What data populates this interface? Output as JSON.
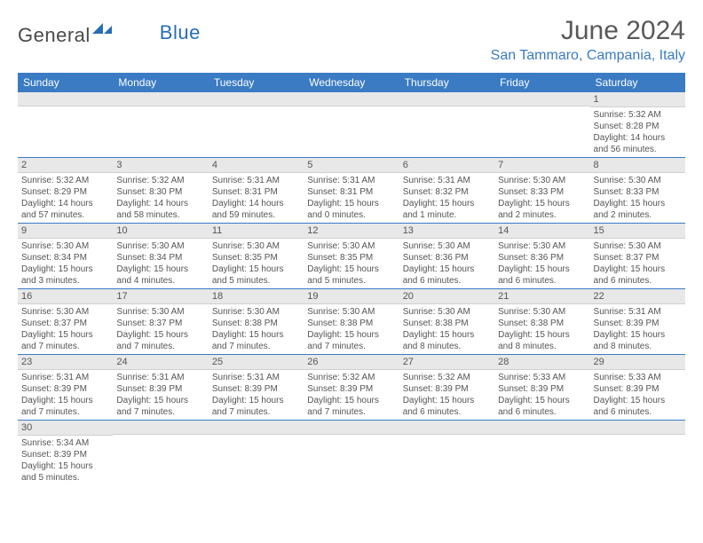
{
  "brand": {
    "part1": "General",
    "part2": "Blue"
  },
  "title": "June 2024",
  "location": "San Tammaro, Campania, Italy",
  "colors": {
    "header_bg": "#3a7bc4",
    "daynum_bg": "#e8e8e8",
    "row_border": "#3a7bc4"
  },
  "weekdays": [
    "Sunday",
    "Monday",
    "Tuesday",
    "Wednesday",
    "Thursday",
    "Friday",
    "Saturday"
  ],
  "weeks": [
    [
      {
        "n": "",
        "s": "",
        "t": "",
        "d": ""
      },
      {
        "n": "",
        "s": "",
        "t": "",
        "d": ""
      },
      {
        "n": "",
        "s": "",
        "t": "",
        "d": ""
      },
      {
        "n": "",
        "s": "",
        "t": "",
        "d": ""
      },
      {
        "n": "",
        "s": "",
        "t": "",
        "d": ""
      },
      {
        "n": "",
        "s": "",
        "t": "",
        "d": ""
      },
      {
        "n": "1",
        "s": "Sunrise: 5:32 AM",
        "t": "Sunset: 8:28 PM",
        "d": "Daylight: 14 hours and 56 minutes."
      }
    ],
    [
      {
        "n": "2",
        "s": "Sunrise: 5:32 AM",
        "t": "Sunset: 8:29 PM",
        "d": "Daylight: 14 hours and 57 minutes."
      },
      {
        "n": "3",
        "s": "Sunrise: 5:32 AM",
        "t": "Sunset: 8:30 PM",
        "d": "Daylight: 14 hours and 58 minutes."
      },
      {
        "n": "4",
        "s": "Sunrise: 5:31 AM",
        "t": "Sunset: 8:31 PM",
        "d": "Daylight: 14 hours and 59 minutes."
      },
      {
        "n": "5",
        "s": "Sunrise: 5:31 AM",
        "t": "Sunset: 8:31 PM",
        "d": "Daylight: 15 hours and 0 minutes."
      },
      {
        "n": "6",
        "s": "Sunrise: 5:31 AM",
        "t": "Sunset: 8:32 PM",
        "d": "Daylight: 15 hours and 1 minute."
      },
      {
        "n": "7",
        "s": "Sunrise: 5:30 AM",
        "t": "Sunset: 8:33 PM",
        "d": "Daylight: 15 hours and 2 minutes."
      },
      {
        "n": "8",
        "s": "Sunrise: 5:30 AM",
        "t": "Sunset: 8:33 PM",
        "d": "Daylight: 15 hours and 2 minutes."
      }
    ],
    [
      {
        "n": "9",
        "s": "Sunrise: 5:30 AM",
        "t": "Sunset: 8:34 PM",
        "d": "Daylight: 15 hours and 3 minutes."
      },
      {
        "n": "10",
        "s": "Sunrise: 5:30 AM",
        "t": "Sunset: 8:34 PM",
        "d": "Daylight: 15 hours and 4 minutes."
      },
      {
        "n": "11",
        "s": "Sunrise: 5:30 AM",
        "t": "Sunset: 8:35 PM",
        "d": "Daylight: 15 hours and 5 minutes."
      },
      {
        "n": "12",
        "s": "Sunrise: 5:30 AM",
        "t": "Sunset: 8:35 PM",
        "d": "Daylight: 15 hours and 5 minutes."
      },
      {
        "n": "13",
        "s": "Sunrise: 5:30 AM",
        "t": "Sunset: 8:36 PM",
        "d": "Daylight: 15 hours and 6 minutes."
      },
      {
        "n": "14",
        "s": "Sunrise: 5:30 AM",
        "t": "Sunset: 8:36 PM",
        "d": "Daylight: 15 hours and 6 minutes."
      },
      {
        "n": "15",
        "s": "Sunrise: 5:30 AM",
        "t": "Sunset: 8:37 PM",
        "d": "Daylight: 15 hours and 6 minutes."
      }
    ],
    [
      {
        "n": "16",
        "s": "Sunrise: 5:30 AM",
        "t": "Sunset: 8:37 PM",
        "d": "Daylight: 15 hours and 7 minutes."
      },
      {
        "n": "17",
        "s": "Sunrise: 5:30 AM",
        "t": "Sunset: 8:37 PM",
        "d": "Daylight: 15 hours and 7 minutes."
      },
      {
        "n": "18",
        "s": "Sunrise: 5:30 AM",
        "t": "Sunset: 8:38 PM",
        "d": "Daylight: 15 hours and 7 minutes."
      },
      {
        "n": "19",
        "s": "Sunrise: 5:30 AM",
        "t": "Sunset: 8:38 PM",
        "d": "Daylight: 15 hours and 7 minutes."
      },
      {
        "n": "20",
        "s": "Sunrise: 5:30 AM",
        "t": "Sunset: 8:38 PM",
        "d": "Daylight: 15 hours and 8 minutes."
      },
      {
        "n": "21",
        "s": "Sunrise: 5:30 AM",
        "t": "Sunset: 8:38 PM",
        "d": "Daylight: 15 hours and 8 minutes."
      },
      {
        "n": "22",
        "s": "Sunrise: 5:31 AM",
        "t": "Sunset: 8:39 PM",
        "d": "Daylight: 15 hours and 8 minutes."
      }
    ],
    [
      {
        "n": "23",
        "s": "Sunrise: 5:31 AM",
        "t": "Sunset: 8:39 PM",
        "d": "Daylight: 15 hours and 7 minutes."
      },
      {
        "n": "24",
        "s": "Sunrise: 5:31 AM",
        "t": "Sunset: 8:39 PM",
        "d": "Daylight: 15 hours and 7 minutes."
      },
      {
        "n": "25",
        "s": "Sunrise: 5:31 AM",
        "t": "Sunset: 8:39 PM",
        "d": "Daylight: 15 hours and 7 minutes."
      },
      {
        "n": "26",
        "s": "Sunrise: 5:32 AM",
        "t": "Sunset: 8:39 PM",
        "d": "Daylight: 15 hours and 7 minutes."
      },
      {
        "n": "27",
        "s": "Sunrise: 5:32 AM",
        "t": "Sunset: 8:39 PM",
        "d": "Daylight: 15 hours and 6 minutes."
      },
      {
        "n": "28",
        "s": "Sunrise: 5:33 AM",
        "t": "Sunset: 8:39 PM",
        "d": "Daylight: 15 hours and 6 minutes."
      },
      {
        "n": "29",
        "s": "Sunrise: 5:33 AM",
        "t": "Sunset: 8:39 PM",
        "d": "Daylight: 15 hours and 6 minutes."
      }
    ],
    [
      {
        "n": "30",
        "s": "Sunrise: 5:34 AM",
        "t": "Sunset: 8:39 PM",
        "d": "Daylight: 15 hours and 5 minutes."
      },
      {
        "n": "",
        "s": "",
        "t": "",
        "d": ""
      },
      {
        "n": "",
        "s": "",
        "t": "",
        "d": ""
      },
      {
        "n": "",
        "s": "",
        "t": "",
        "d": ""
      },
      {
        "n": "",
        "s": "",
        "t": "",
        "d": ""
      },
      {
        "n": "",
        "s": "",
        "t": "",
        "d": ""
      },
      {
        "n": "",
        "s": "",
        "t": "",
        "d": ""
      }
    ]
  ]
}
